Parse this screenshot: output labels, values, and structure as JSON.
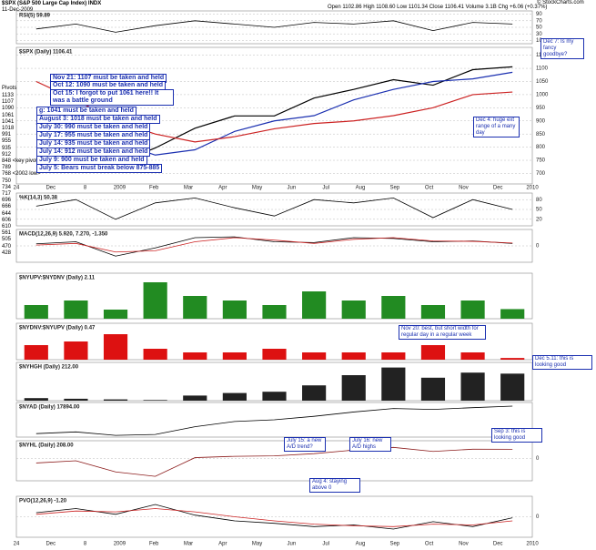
{
  "header": {
    "symbol": "$SPX (S&P 500 Large Cap Index) INDX",
    "date": "11-Dec-2009",
    "quote": "Open 1102.86  High 1108.60  Low 1101.34  Close 1106.41  Volume 3.1B  Chg +6.06 (+0.37%)",
    "credit": "© StockCharts.com"
  },
  "pivots": {
    "title": "Pivots",
    "levels": [
      "1133",
      "1107",
      "1090",
      "1061",
      "1041",
      "1018",
      "991",
      "955",
      "935",
      "912",
      "848 <key pivot>",
      "789",
      "768 <2002 low>",
      "750",
      "734",
      "717",
      "696",
      "666",
      "644",
      "606",
      "610",
      "561",
      "505",
      "470",
      "428"
    ]
  },
  "axis_labels": [
    "24",
    "Dec",
    "8",
    "2009",
    "Feb",
    "Mar",
    "Apr",
    "May",
    "Jun",
    "Jul",
    "Aug",
    "Sep",
    "Oct",
    "Nov",
    "Dec",
    "2010"
  ],
  "annotations": [
    "Nov 21: 1107 must be taken and held",
    "Oct 12: 1090 must be taken and held",
    "Oct 15: I forgot to put 1061 here!! It was a battle ground",
    "g: 1041 must be taken and held",
    "August 3: 1018 must be taken and held",
    "July 30: 990 must be taken and held",
    "July 17: 955 must be taken and held",
    "July 14: 935 must be taken and held",
    "July 14: 912 must be taken and held",
    "July 9: 900 must be taken and held",
    "July 5: Bears must break below 875-885",
    "Dec 4: huge ext range of a many day",
    "Dec 7: Is my fancy goodbye?",
    "Nov 20: best, but short width for regular day in a regular week",
    "Dec 5.11: this is looking good",
    "July 15: a new A/D trend?",
    "July 16: new A/D highs",
    "Sep 3: this is looking good",
    "Aug 4: staying above 0"
  ],
  "chart_data": [
    {
      "type": "line",
      "title": "RSI(5) 59.89",
      "categories": [
        "Dec",
        "2009",
        "Feb",
        "Mar",
        "Apr",
        "May",
        "Jun",
        "Jul",
        "Aug",
        "Sep",
        "Oct",
        "Nov",
        "Dec"
      ],
      "series": [
        {
          "name": "RSI(5)",
          "color": "#000000",
          "values": [
            45,
            60,
            35,
            55,
            70,
            60,
            50,
            65,
            60,
            70,
            40,
            65,
            60
          ]
        }
      ],
      "ylim": [
        0,
        100
      ],
      "yticks": [
        10,
        30,
        50,
        70,
        90
      ],
      "grid": true
    },
    {
      "type": "line",
      "title": "$SPX (Daily) 1106.41",
      "categories": [
        "Dec",
        "2009",
        "Feb",
        "Mar",
        "Apr",
        "May",
        "Jun",
        "Jul",
        "Aug",
        "Sep",
        "Oct",
        "Nov",
        "Dec"
      ],
      "series": [
        {
          "name": "$SPX",
          "color": "#000000",
          "values": [
            890,
            825,
            735,
            797,
            872,
            919,
            919,
            987,
            1020,
            1057,
            1036,
            1095,
            1106
          ]
        },
        {
          "name": "MA(50)",
          "color": "#1a2fb0",
          "values": [
            900,
            870,
            820,
            770,
            790,
            860,
            900,
            920,
            980,
            1020,
            1050,
            1060,
            1085
          ]
        },
        {
          "name": "MA(200)",
          "color": "#cc2222",
          "values": [
            1050,
            980,
            900,
            850,
            820,
            840,
            870,
            890,
            900,
            920,
            950,
            1000,
            1010
          ]
        }
      ],
      "ylim": [
        660,
        1180
      ],
      "yticks": [
        700,
        750,
        800,
        850,
        900,
        950,
        1000,
        1050,
        1100,
        1150
      ],
      "grid": true
    },
    {
      "type": "line",
      "title": "%K(14,3) 50.38",
      "categories": [
        "Dec",
        "2009",
        "Feb",
        "Mar",
        "Apr",
        "May",
        "Jun",
        "Jul",
        "Aug",
        "Sep",
        "Oct",
        "Nov",
        "Dec"
      ],
      "series": [
        {
          "name": "%K",
          "color": "#000000",
          "values": [
            60,
            80,
            20,
            70,
            85,
            55,
            30,
            80,
            70,
            85,
            25,
            80,
            50
          ]
        }
      ],
      "ylim": [
        0,
        100
      ],
      "yticks": [
        20,
        50,
        80
      ],
      "grid": true
    },
    {
      "type": "line",
      "title": "MACD(12,26,9) 5.920, 7.270, -1.350",
      "categories": [
        "Dec",
        "2009",
        "Feb",
        "Mar",
        "Apr",
        "May",
        "Jun",
        "Jul",
        "Aug",
        "Sep",
        "Oct",
        "Nov",
        "Dec"
      ],
      "series": [
        {
          "name": "MACD",
          "color": "#000000",
          "values": [
            5,
            10,
            -25,
            -5,
            20,
            22,
            10,
            8,
            20,
            18,
            10,
            12,
            6
          ]
        },
        {
          "name": "Signal",
          "color": "#cc2222",
          "values": [
            2,
            6,
            -15,
            -12,
            10,
            20,
            14,
            6,
            16,
            20,
            12,
            11,
            7
          ]
        }
      ],
      "ylim": [
        -40,
        40
      ],
      "yticks": [
        0
      ],
      "grid": true
    },
    {
      "type": "bar",
      "title": "$NYUPV:$NYDNV (Daily) 2.11",
      "categories": [
        "Dec",
        "2009",
        "Feb",
        "Mar",
        "Apr",
        "May",
        "Jun",
        "Jul",
        "Aug",
        "Sep",
        "Oct",
        "Nov",
        "Dec"
      ],
      "series": [
        {
          "name": "$NYUPV:$NYDNV",
          "color": "#228b22",
          "values": [
            3,
            4,
            2,
            8,
            5,
            4,
            3,
            6,
            4,
            5,
            3,
            4,
            2.11
          ]
        }
      ],
      "ylim": [
        0,
        10
      ]
    },
    {
      "type": "bar",
      "title": "$NYDNV:$NYUPV (Daily) 0.47",
      "categories": [
        "Dec",
        "2009",
        "Feb",
        "Mar",
        "Apr",
        "May",
        "Jun",
        "Jul",
        "Aug",
        "Sep",
        "Oct",
        "Nov",
        "Dec"
      ],
      "series": [
        {
          "name": "$NYDNV:$NYUPV",
          "color": "#dd1111",
          "values": [
            4,
            5,
            7,
            3,
            2,
            2,
            3,
            2,
            2,
            2,
            4,
            2,
            0.47
          ]
        }
      ],
      "ylim": [
        0,
        10
      ]
    },
    {
      "type": "bar",
      "title": "$NYHGH (Daily) 212.00",
      "categories": [
        "Dec",
        "2009",
        "Feb",
        "Mar",
        "Apr",
        "May",
        "Jun",
        "Jul",
        "Aug",
        "Sep",
        "Oct",
        "Nov",
        "Dec"
      ],
      "series": [
        {
          "name": "$NYHGH",
          "color": "#222222",
          "values": [
            20,
            15,
            10,
            5,
            40,
            60,
            70,
            120,
            200,
            260,
            180,
            220,
            212
          ]
        }
      ],
      "ylim": [
        0,
        300
      ]
    },
    {
      "type": "line",
      "title": "$NYAD (Daily) 17894.00",
      "categories": [
        "Dec",
        "2009",
        "Feb",
        "Mar",
        "Apr",
        "May",
        "Jun",
        "Jul",
        "Aug",
        "Sep",
        "Oct",
        "Nov",
        "Dec"
      ],
      "series": [
        {
          "name": "$NYAD",
          "color": "#000000",
          "values": [
            2000,
            3000,
            1000,
            1500,
            6000,
            9000,
            10000,
            12000,
            14500,
            16500,
            16000,
            17000,
            17894
          ]
        }
      ],
      "ylim": [
        0,
        20000
      ]
    },
    {
      "type": "line",
      "title": "$NYHL (Daily) 208.00",
      "categories": [
        "Dec",
        "2009",
        "Feb",
        "Mar",
        "Apr",
        "May",
        "Jun",
        "Jul",
        "Aug",
        "Sep",
        "Oct",
        "Nov",
        "Dec"
      ],
      "series": [
        {
          "name": "$NYHL",
          "color": "#8b1a1a",
          "values": [
            -100,
            -50,
            -300,
            -400,
            20,
            50,
            60,
            110,
            190,
            250,
            160,
            210,
            208
          ]
        }
      ],
      "ylim": [
        -500,
        400
      ],
      "yticks": [
        0
      ],
      "grid": true
    },
    {
      "type": "line",
      "title": "PVO(12,26,9) -1.20",
      "categories": [
        "Dec",
        "2009",
        "Feb",
        "Mar",
        "Apr",
        "May",
        "Jun",
        "Jul",
        "Aug",
        "Sep",
        "Oct",
        "Nov",
        "Dec"
      ],
      "series": [
        {
          "name": "PVO",
          "color": "#000000",
          "values": [
            5,
            10,
            3,
            15,
            2,
            -5,
            -8,
            -12,
            -10,
            -15,
            -6,
            -12,
            -1.2
          ]
        },
        {
          "name": "Signal",
          "color": "#cc2222",
          "values": [
            3,
            7,
            6,
            10,
            6,
            0,
            -5,
            -9,
            -11,
            -12,
            -9,
            -10,
            -5
          ]
        }
      ],
      "ylim": [
        -25,
        25
      ],
      "yticks": [
        0
      ],
      "grid": true
    }
  ]
}
